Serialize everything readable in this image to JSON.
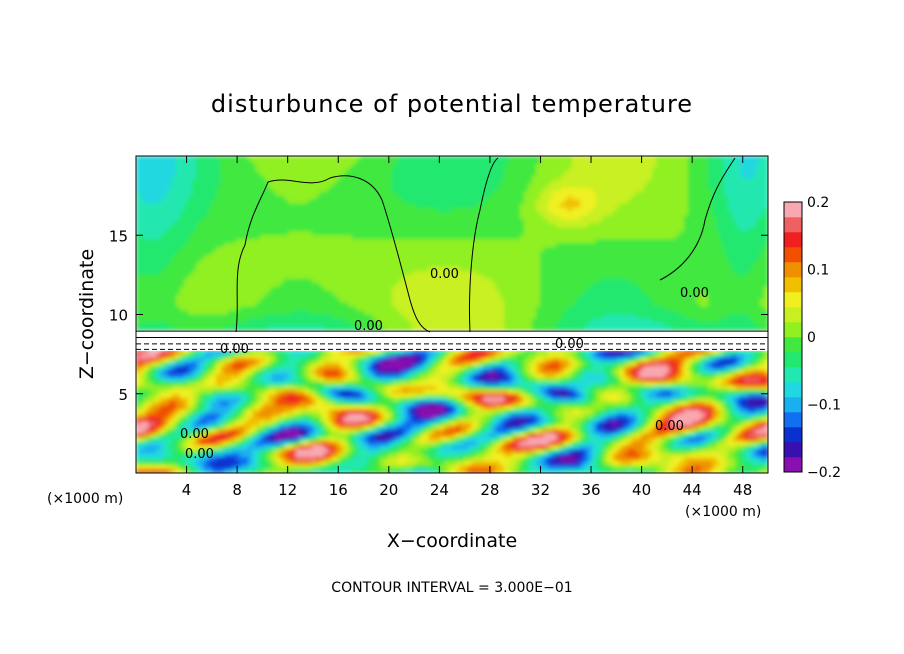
{
  "chart_data": {
    "type": "heatmap",
    "title": "disturbunce of potential temperature",
    "xlabel": "X−coordinate",
    "ylabel": "Z−coordinate",
    "x_unit_left": "(×1000 m)",
    "x_unit_right": "(×1000 m)",
    "xlim": [
      0,
      50
    ],
    "ylim": [
      0,
      20
    ],
    "x_ticks": [
      {
        "value": 4,
        "label": "4"
      },
      {
        "value": 8,
        "label": "8"
      },
      {
        "value": 12,
        "label": "12"
      },
      {
        "value": 16,
        "label": "16"
      },
      {
        "value": 20,
        "label": "20"
      },
      {
        "value": 24,
        "label": "24"
      },
      {
        "value": 28,
        "label": "28"
      },
      {
        "value": 32,
        "label": "32"
      },
      {
        "value": 36,
        "label": "36"
      },
      {
        "value": 40,
        "label": "40"
      },
      {
        "value": 44,
        "label": "44"
      },
      {
        "value": 48,
        "label": "48"
      }
    ],
    "y_ticks": [
      {
        "value": 5,
        "label": "5"
      },
      {
        "value": 10,
        "label": "10"
      },
      {
        "value": 15,
        "label": "15"
      }
    ],
    "colorbar": {
      "range": [
        -0.2,
        0.2
      ],
      "ticks": [
        {
          "value": 0.2,
          "label": "0.2"
        },
        {
          "value": 0.1,
          "label": "0.1"
        },
        {
          "value": 0,
          "label": "0"
        },
        {
          "value": -0.1,
          "label": "−0.1"
        },
        {
          "value": -0.2,
          "label": "−0.2"
        }
      ],
      "colors": [
        "#8a0fb0",
        "#3a0fb0",
        "#0a30d0",
        "#1070f0",
        "#1ab0f0",
        "#20d8e0",
        "#20e8b0",
        "#20e870",
        "#40e840",
        "#90f020",
        "#c8f020",
        "#f0f020",
        "#f0c000",
        "#f09000",
        "#f05000",
        "#f02020",
        "#f06060",
        "#f8a8b0"
      ]
    },
    "contour_labels": [
      "0.00",
      "0.00",
      "0.00",
      "0.00",
      "0.00",
      "0.00",
      "0.00",
      "0.00"
    ],
    "footer": "CONTOUR INTERVAL = 3.000E−01"
  }
}
